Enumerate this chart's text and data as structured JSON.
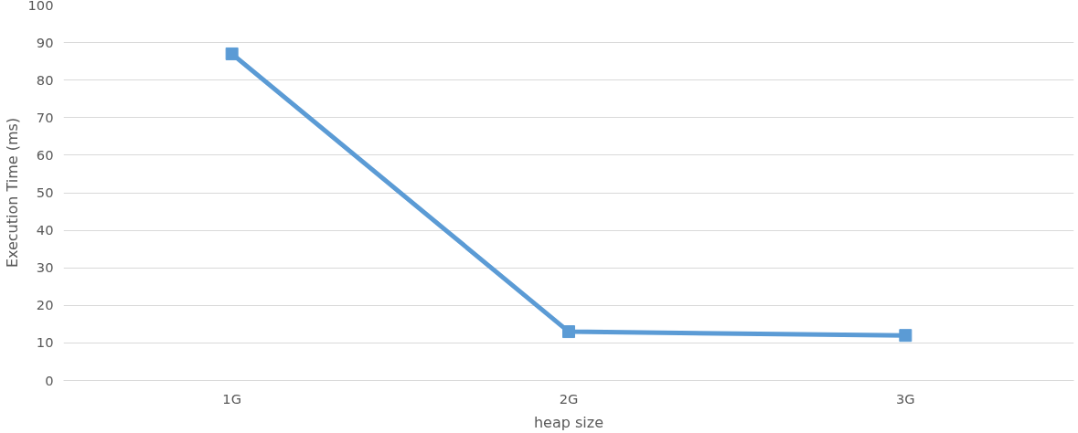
{
  "chart_data": {
    "type": "line",
    "xlabel": "heap size",
    "ylabel": "Execution Time (ms)",
    "categories": [
      "1G",
      "2G",
      "3G"
    ],
    "series": [
      {
        "color": "#5b9bd5",
        "values": [
          87,
          13,
          12
        ]
      }
    ],
    "ylim": [
      0,
      100
    ],
    "yticks": [
      0,
      10,
      20,
      30,
      40,
      50,
      60,
      70,
      80,
      90,
      100
    ],
    "grid": "y",
    "marker": "square",
    "line_style": "solid"
  }
}
